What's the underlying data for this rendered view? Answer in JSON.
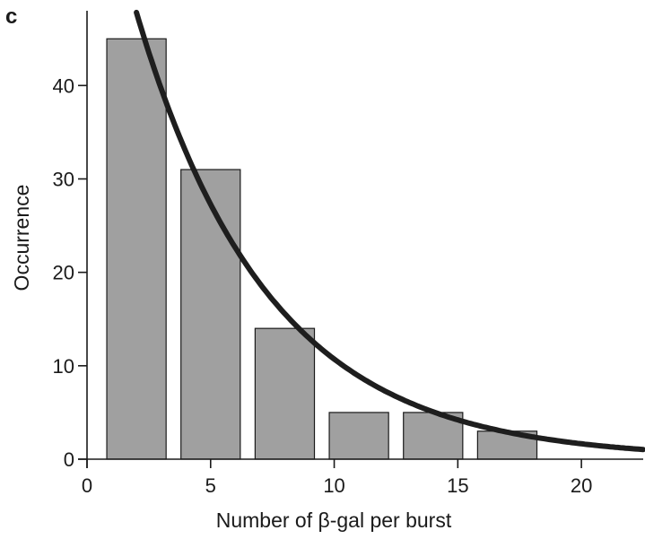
{
  "panel_label": "c",
  "chart_data": {
    "type": "bar",
    "title": "",
    "xlabel": "Number of β-gal per burst",
    "ylabel": "Occurrence",
    "xlim": [
      0,
      22.5
    ],
    "ylim": [
      0,
      48
    ],
    "xticks": [
      0,
      5,
      10,
      15,
      20
    ],
    "yticks": [
      0,
      10,
      20,
      30,
      40
    ],
    "bars": [
      {
        "x0": 0.8,
        "x1": 3.2,
        "value": 45
      },
      {
        "x0": 3.8,
        "x1": 6.2,
        "value": 31
      },
      {
        "x0": 6.8,
        "x1": 9.2,
        "value": 14
      },
      {
        "x0": 9.8,
        "x1": 12.2,
        "value": 5
      },
      {
        "x0": 12.8,
        "x1": 15.2,
        "value": 5
      },
      {
        "x0": 15.8,
        "x1": 18.2,
        "value": 3
      }
    ],
    "fit_curve": {
      "type": "exponential",
      "amplitude": 69.5,
      "decay_constant": 0.187,
      "x_start": 2.0,
      "x_end": 22.5
    },
    "bar_color": "#a0a0a0",
    "line_color": "#1e1e1e"
  }
}
